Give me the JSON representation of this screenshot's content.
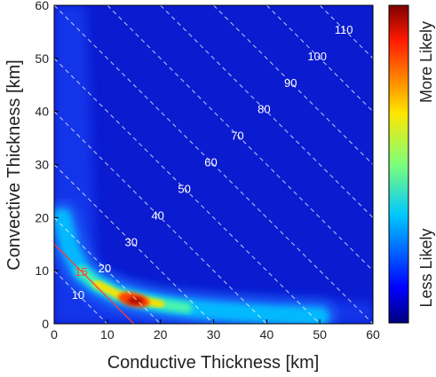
{
  "chart_data": {
    "type": "heatmap",
    "xlabel": "Conductive Thickness [km]",
    "ylabel": "Convective Thickness [km]",
    "xlim": [
      0,
      60
    ],
    "ylim": [
      0,
      60
    ],
    "x_ticks": [
      0,
      10,
      20,
      30,
      40,
      50,
      60
    ],
    "y_ticks": [
      0,
      10,
      20,
      30,
      40,
      50,
      60
    ],
    "grid": false,
    "colorbar": {
      "colormap": "jet",
      "top_label": "More Likely",
      "bottom_label": "Less Likely"
    },
    "total_thickness_contours": {
      "style": "dashed white",
      "levels": [
        10,
        20,
        30,
        40,
        50,
        60,
        70,
        80,
        90,
        100,
        110
      ],
      "labels": [
        "10",
        "20",
        "30",
        "40",
        "50",
        "60",
        "70",
        "80",
        "90",
        "100",
        "110"
      ]
    },
    "highlight_contour": {
      "level": 15,
      "label": "15",
      "color": "#ff3b3b"
    },
    "density_ridge": {
      "description_points": [
        [
          1.5,
          20
        ],
        [
          3,
          14
        ],
        [
          5,
          10
        ],
        [
          8,
          7.5
        ],
        [
          12,
          5.5
        ],
        [
          16,
          4.5
        ],
        [
          20,
          3.7
        ],
        [
          25,
          3
        ],
        [
          30,
          2.5
        ],
        [
          40,
          1.8
        ],
        [
          50,
          1.4
        ]
      ],
      "peak": [
        15,
        4.5
      ]
    }
  }
}
